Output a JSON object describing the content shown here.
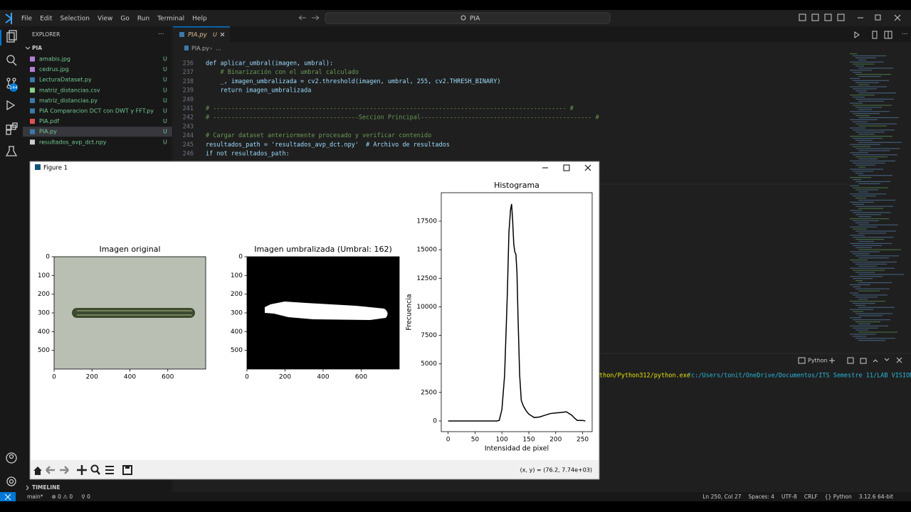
{
  "menu": [
    "File",
    "Edit",
    "Selection",
    "View",
    "Go",
    "Run",
    "Terminal",
    "Help"
  ],
  "search": "PIA",
  "activity_badge": "144",
  "explorer": {
    "title": "EXPLORER",
    "folder": "PIA",
    "selected": 7,
    "files": [
      {
        "name": "amabis.jpg",
        "status": "U",
        "icon": "#b180d7"
      },
      {
        "name": "cedrus.jpg",
        "status": "U",
        "icon": "#b180d7"
      },
      {
        "name": "LecturaDataset.py",
        "status": "U",
        "icon": "#3c78aa"
      },
      {
        "name": "matriz_distancias.csv",
        "status": "U",
        "icon": "#89d185"
      },
      {
        "name": "matriz_distancias.py",
        "status": "U",
        "icon": "#3c78aa"
      },
      {
        "name": "PIA Comparacion DCT con DWT y FFT.py",
        "status": "U",
        "icon": "#3c78aa"
      },
      {
        "name": "PIA.pdf",
        "status": "U",
        "icon": "#e05252"
      },
      {
        "name": "PIA.py",
        "status": "U",
        "icon": "#3c78aa"
      },
      {
        "name": "resultados_avp_dct.npy",
        "status": "U",
        "icon": "#cccccc"
      }
    ]
  },
  "timeline": "TIMELINE",
  "tab": {
    "name": "PIA.py",
    "status": "U"
  },
  "breadcrumb": [
    "PIA.py",
    "..."
  ],
  "code": [
    {
      "n": 236,
      "text": "def aplicar_umbral(imagen, umbral):"
    },
    {
      "n": 237,
      "text": "    # Binarización con el umbral calculado"
    },
    {
      "n": 238,
      "text": "    _, imagen_umbralizada = cv2.threshold(imagen, umbral, 255, cv2.THRESH_BINARY)"
    },
    {
      "n": 239,
      "text": "    return imagen_umbralizada"
    },
    {
      "n": 240
    },
    {
      "n": 241,
      "text": "# ------------------------------------------------------------------------------------------------- #"
    },
    {
      "n": 242,
      "text": "# ----------------------------------------Seccion Principal----------------------------------------------- #"
    },
    {
      "n": 243
    },
    {
      "n": 244,
      "text": "# Cargar dataset anteriormente procesado y verificar contenido"
    },
    {
      "n": 245,
      "text": "resultados_path = 'resultados_avp_dct.npy'  # Archivo de resultados"
    },
    {
      "n": 246,
      "text": "if not resultados_path:"
    }
  ],
  "panel": {
    "shell": "Python",
    "command": "thon/Python312/python.exe",
    "argument": "\"c:/Users/tonit/OneDrive/Documentos/ITS Semestre 11/LAB VISION CO"
  },
  "status": {
    "left": [
      "main*",
      "⊗ 0 ⚠ 0",
      "⚲ 0"
    ],
    "right": [
      "Ln 250, Col 27",
      "Spaces: 4",
      "UTF-8",
      "CRLF",
      "{} Python",
      "3.12.6 64-bit"
    ]
  },
  "figure": {
    "title": "Figure 1",
    "coords": "(x, y) = (76.2, 7.74e+03)",
    "images": [
      {
        "title": "Imagen original",
        "xlim": [
          0,
          800
        ],
        "ylim": [
          600,
          0
        ],
        "xticks": [
          0,
          200,
          400,
          600
        ],
        "yticks": [
          0,
          100,
          200,
          300,
          400,
          500
        ]
      },
      {
        "title": "Imagen umbralizada (Umbral: 162)",
        "xlim": [
          0,
          800
        ],
        "ylim": [
          600,
          0
        ],
        "xticks": [
          0,
          200,
          400,
          600
        ],
        "yticks": [
          0,
          100,
          200,
          300,
          400,
          500
        ]
      }
    ],
    "histogram": {
      "type": "line",
      "title": "Histograma",
      "xlabel": "Intensidad de pixel",
      "ylabel": "Frecuencia",
      "color": "#000000",
      "x": [
        0,
        10,
        20,
        30,
        40,
        50,
        60,
        70,
        80,
        90,
        95,
        100,
        105,
        110,
        113,
        116,
        118,
        120,
        122,
        124,
        126,
        128,
        130,
        133,
        136,
        140,
        145,
        150,
        160,
        170,
        180,
        190,
        200,
        210,
        220,
        230,
        235,
        240,
        250,
        255
      ],
      "values": [
        0,
        0,
        0,
        0,
        0,
        0,
        0,
        0,
        0,
        0,
        50,
        1000,
        4000,
        11000,
        16500,
        18500,
        19000,
        17500,
        15500,
        14800,
        14600,
        13000,
        9000,
        4000,
        1800,
        1300,
        900,
        600,
        300,
        350,
        500,
        650,
        700,
        750,
        800,
        500,
        250,
        50,
        50,
        0
      ],
      "xlim": [
        -12.75,
        267.75
      ],
      "ylim": [
        -934,
        19990
      ],
      "xticks": [
        0,
        50,
        100,
        150,
        200,
        250
      ],
      "yticks": [
        0,
        2500,
        5000,
        7500,
        10000,
        12500,
        15000,
        17500
      ]
    }
  }
}
